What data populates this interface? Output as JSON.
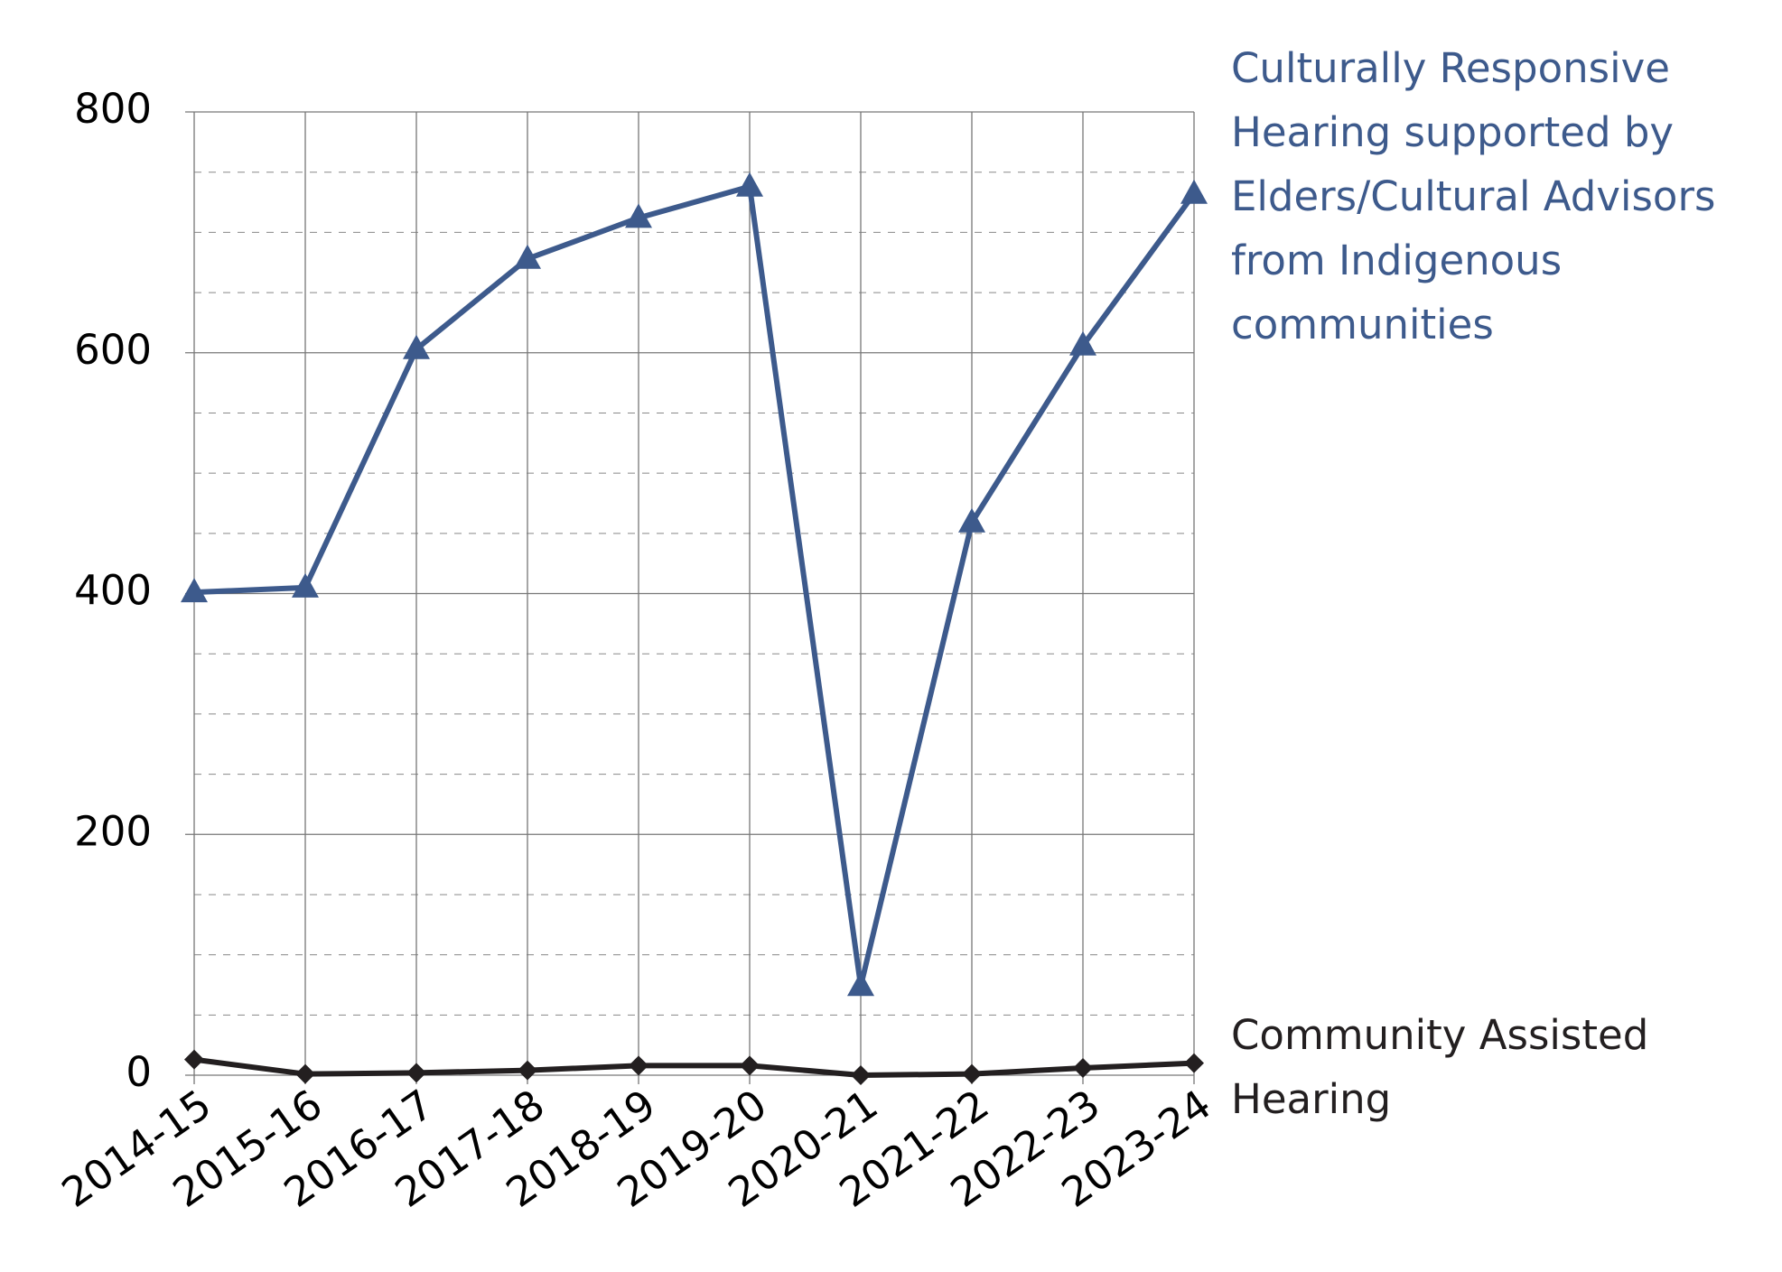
{
  "chart_data": {
    "type": "line",
    "categories": [
      "2014-15",
      "2015-16",
      "2016-17",
      "2017-18",
      "2018-19",
      "2019-20",
      "2020-21",
      "2021-22",
      "2022-23",
      "2023-24"
    ],
    "series": [
      {
        "name": "Culturally Responsive Hearing supported by Elders/Cultural Advisors from Indigenous communities",
        "color": "#3d5a8c",
        "marker": "triangle",
        "values": [
          401,
          405,
          603,
          678,
          712,
          738,
          74,
          459,
          606,
          732
        ]
      },
      {
        "name": "Community Assisted Hearing",
        "color": "#231f20",
        "marker": "diamond",
        "values": [
          13,
          1,
          2,
          4,
          8,
          8,
          0,
          1,
          6,
          10
        ]
      }
    ],
    "ylim": [
      0,
      800
    ],
    "yticks": [
      0,
      200,
      400,
      600,
      800
    ],
    "minor_yticks": [
      50,
      100,
      150,
      250,
      300,
      350,
      450,
      500,
      550,
      650,
      700,
      750
    ],
    "grid": true
  }
}
